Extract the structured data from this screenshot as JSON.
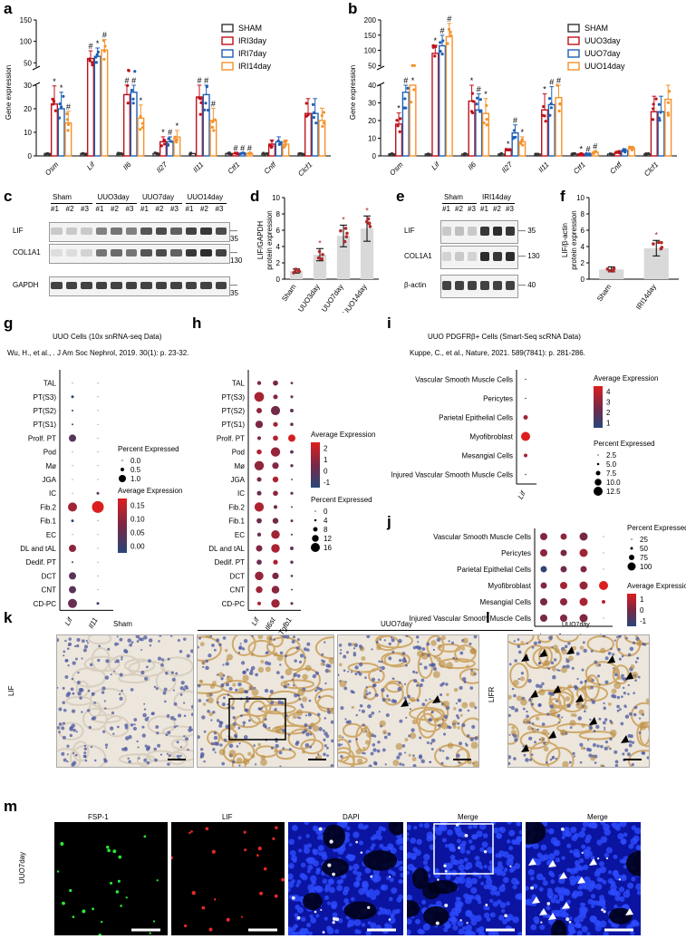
{
  "panels": {
    "a": {
      "label": "a",
      "ylabel": "Gene expression",
      "legend": [
        "SHAM",
        "IRI3day",
        "IRI7day",
        "IRI14day"
      ],
      "colors": [
        "#333333",
        "#c0101a",
        "#1f5fb4",
        "#f5922b"
      ],
      "yticks_top": [
        "150",
        "100",
        "50"
      ],
      "yticks_bottom": [
        "30",
        "20",
        "10",
        "0"
      ],
      "genes": [
        "Osm",
        "Lif",
        "Il6",
        "Il27",
        "Il11",
        "Ctf1",
        "Cntf",
        "Clcf1"
      ],
      "markers": [
        "*",
        "*",
        "#",
        "#",
        "*",
        "#",
        "#",
        "#",
        "*",
        "*",
        "#",
        "*",
        "#",
        "#",
        "#",
        "#",
        "#",
        "#"
      ]
    },
    "b": {
      "label": "b",
      "ylabel": "Gene expression",
      "legend": [
        "SHAM",
        "UUO3day",
        "UUO7day",
        "UUO14day"
      ],
      "colors": [
        "#333333",
        "#c0101a",
        "#1f5fb4",
        "#f5922b"
      ],
      "yticks_top": [
        "200",
        "150",
        "100",
        "50"
      ],
      "yticks_bottom": [
        "40",
        "30",
        "20",
        "10",
        "0"
      ],
      "genes": [
        "Osm",
        "Lif",
        "Il6",
        "Il27",
        "Il11",
        "Ctf1",
        "Cntf",
        "Clcf1"
      ],
      "markers": [
        "*",
        "#",
        "*",
        "*",
        "#",
        "#",
        "*",
        "#",
        "*",
        "*",
        "#",
        "*",
        "*",
        "#",
        "#",
        "*",
        "#",
        "#"
      ]
    },
    "c": {
      "label": "c",
      "groups": [
        "Sham",
        "UUO3day",
        "UUO7day",
        "UUO14day"
      ],
      "lanes": [
        "#1",
        "#2",
        "#3",
        "#1",
        "#2",
        "#3",
        "#1",
        "#2",
        "#3",
        "#1",
        "#2",
        "#3"
      ],
      "rows": [
        "LIF",
        "COL1A1",
        "GAPDH"
      ],
      "mw": [
        "35",
        "130",
        "35"
      ]
    },
    "d": {
      "label": "d",
      "ylabel": "LIF/GAPDH\nprotein expression",
      "ylabel1": "LIF/GAPDH",
      "ylabel2": "protein expression",
      "yticks": [
        "10",
        "8",
        "6",
        "4",
        "2",
        "0"
      ],
      "categories": [
        "Sham",
        "UUO3day",
        "UUO7day",
        "UUO14day"
      ]
    },
    "e": {
      "label": "e",
      "groups": [
        "Sham",
        "IRI14day"
      ],
      "lanes": [
        "#1",
        "#2",
        "#3",
        "#1",
        "#2",
        "#3"
      ],
      "rows": [
        "LIF",
        "COL1A1",
        "β-actin"
      ],
      "mw": [
        "35",
        "130",
        "40"
      ]
    },
    "f": {
      "label": "f",
      "ylabel1": "LIF/β-actin",
      "ylabel2": "protein expression",
      "yticks": [
        "10",
        "8",
        "6",
        "4",
        "2",
        "0"
      ],
      "categories": [
        "Sham",
        "IRI14day"
      ]
    },
    "g": {
      "label": "g",
      "title": "UUO Cells (10x snRNA-seq Data)",
      "citation": "Wu, H., et al., . J Am Soc Nephrol, 2019. 30(1): p. 23-32.",
      "rows": [
        "TAL",
        "PT(S3)",
        "PT(S2)",
        "PT(S1)",
        "Prolf. PT",
        "Pod",
        "Mø",
        "JGA",
        "IC",
        "Fib.2",
        "Fib.1",
        "EC",
        "DL and tAL",
        "Dedif. PT",
        "DCT",
        "CNT",
        "CD-PC"
      ],
      "cols": [
        "Lif",
        "Il11"
      ],
      "legend_pct_title": "Percent Expressed",
      "legend_pct": [
        "0.0",
        "0.5",
        "1.0"
      ],
      "legend_avg_title": "Average Expression",
      "legend_avg": [
        "0.15",
        "0.10",
        "0.05",
        "0.00"
      ]
    },
    "h": {
      "label": "h",
      "rows": [
        "TAL",
        "PT(S3)",
        "PT(S2)",
        "PT(S1)",
        "Prolf. PT",
        "Pod",
        "Mø",
        "JGA",
        "IC",
        "Fib.2",
        "Fib.1",
        "EC",
        "DL and tAL",
        "Dedif. PT",
        "DCT",
        "CNT",
        "CD-PC"
      ],
      "cols": [
        "Lif",
        "Il6st",
        "Tgfb1"
      ],
      "legend_avg_title": "Average Expression",
      "legend_avg": [
        "2",
        "1",
        "0",
        "-1"
      ],
      "legend_pct_title": "Percent Expressed",
      "legend_pct": [
        "0",
        "4",
        "8",
        "12",
        "16"
      ]
    },
    "i": {
      "label": "i",
      "title": "UUO PDGFRβ+ Cells (Smart-Seq scRNA Data)",
      "citation": "Kuppe, C., et al.,  Nature, 2021. 589(7841): p. 281-286.",
      "rows": [
        "Vascular Smooth Muscle Cells",
        "Pericytes",
        "Parietal Epithelial Cells",
        "Myofibroblast",
        "Mesangial Cells",
        "Injured Vascular Smooth Muscle Cells"
      ],
      "cols": [
        "Lif"
      ],
      "legend_avg_title": "Average Expression",
      "legend_avg": [
        "4",
        "3",
        "2",
        "1"
      ],
      "legend_pct_title": "Percent Expressed",
      "legend_pct": [
        "2.5",
        "5.0",
        "7.5",
        "10.0",
        "12.5"
      ]
    },
    "j": {
      "label": "j",
      "rows": [
        "Vascular Smooth Muscle Cells",
        "Pericytes",
        "Parietal Epithelial Cells",
        "Myofibroblast",
        "Mesangial Cells",
        "Injured Vascular Smooth Muscle Cells"
      ],
      "cols": [
        "Lifr",
        "Il6st",
        "Pdgfrb",
        "Pdgfra"
      ],
      "legend_pct_title": "Percent Expressed",
      "legend_pct": [
        "25",
        "50",
        "75",
        "100"
      ],
      "legend_avg_title": "Average Expression",
      "legend_avg": [
        "1",
        "0",
        "-1"
      ]
    },
    "k": {
      "label": "k",
      "side": "LIF",
      "sham": "Sham",
      "uuo": "UUO7day"
    },
    "l": {
      "label": "l",
      "side": "LIFR",
      "title": "UUO7day"
    },
    "m": {
      "label": "m",
      "side": "UUO7day",
      "channels": [
        "FSP-1",
        "LIF",
        "DAPI",
        "Merge",
        "Merge"
      ]
    }
  },
  "chart_data": [
    {
      "type": "bar",
      "title": "",
      "ylabel": "Gene expression",
      "categories": [
        "Osm",
        "Lif",
        "Il6",
        "Il27",
        "Il11",
        "Ctf1",
        "Cntf",
        "Clcf1"
      ],
      "series": [
        {
          "name": "SHAM",
          "values": [
            1,
            1,
            1,
            1,
            1,
            1,
            1,
            1
          ]
        },
        {
          "name": "IRI3day",
          "values": [
            22,
            60,
            26,
            6,
            25,
            1,
            5,
            18
          ]
        },
        {
          "name": "IRI7day",
          "values": [
            20,
            65,
            27,
            6,
            26,
            1,
            6,
            18
          ]
        },
        {
          "name": "IRI14day",
          "values": [
            14,
            80,
            16,
            8,
            15,
            1,
            5,
            15
          ]
        }
      ]
    },
    {
      "type": "bar",
      "title": "",
      "ylabel": "Gene expression",
      "categories": [
        "Osm",
        "Lif",
        "Il6",
        "Il27",
        "Il11",
        "Ctf1",
        "Cntf",
        "Clcf1"
      ],
      "series": [
        {
          "name": "SHAM",
          "values": [
            1,
            1,
            1,
            1,
            1,
            1,
            1,
            1
          ]
        },
        {
          "name": "UUO3day",
          "values": [
            18,
            90,
            31,
            3,
            26,
            1,
            2,
            25
          ]
        },
        {
          "name": "UUO7day",
          "values": [
            36,
            115,
            26,
            13,
            29,
            1,
            3,
            25
          ]
        },
        {
          "name": "UUO14day",
          "values": [
            40,
            145,
            24,
            8,
            33,
            2,
            4,
            32
          ]
        }
      ]
    },
    {
      "type": "bar",
      "title": "",
      "ylabel": "LIF/GAPDH protein expression",
      "categories": [
        "Sham",
        "UUO3day",
        "UUO7day",
        "UUO14day"
      ],
      "values": [
        1.0,
        3.0,
        5.3,
        6.2
      ],
      "ylim": [
        0,
        10
      ]
    },
    {
      "type": "bar",
      "title": "",
      "ylabel": "LIF/β-actin protein expression",
      "categories": [
        "Sham",
        "IRI14day"
      ],
      "values": [
        1.2,
        3.8
      ],
      "ylim": [
        0,
        10
      ]
    }
  ]
}
